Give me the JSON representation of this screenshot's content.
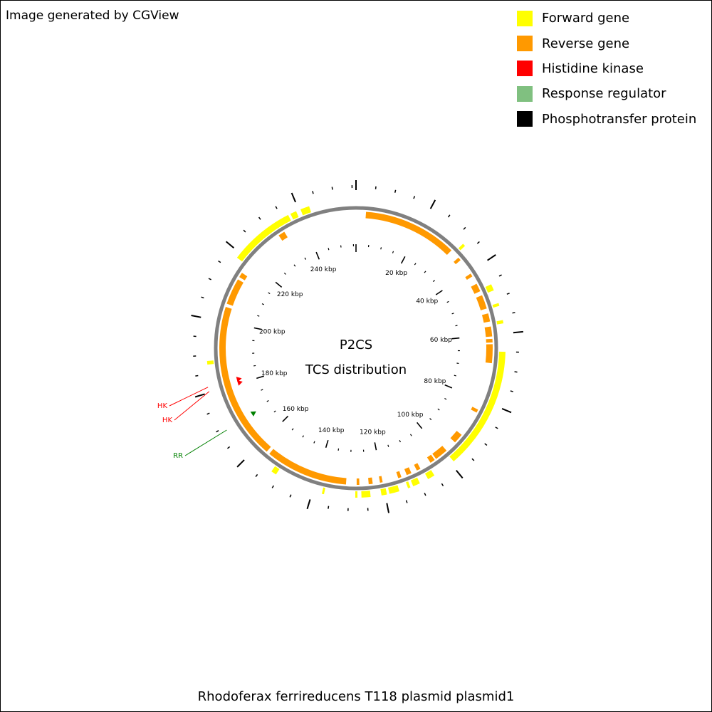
{
  "header": {
    "credit": "Image generated by CGView"
  },
  "legend": {
    "items": [
      {
        "label": "Forward gene",
        "color": "#ffff00"
      },
      {
        "label": "Reverse gene",
        "color": "#ff9900"
      },
      {
        "label": "Histidine kinase",
        "color": "#ff0000"
      },
      {
        "label": "Response regulator",
        "color": "#80c080"
      },
      {
        "label": "Phosphotransfer protein",
        "color": "#000000"
      }
    ]
  },
  "map": {
    "title_line1": "P2CS",
    "title_line2": "TCS distribution",
    "total_kbp": 256,
    "backbone_color": "#808080",
    "tick_labels": [
      "20 kbp",
      "40 kbp",
      "60 kbp",
      "80 kbp",
      "100 kbp",
      "120 kbp",
      "140 kbp",
      "160 kbp",
      "180 kbp",
      "200 kbp",
      "220 kbp",
      "240 kbp"
    ],
    "tick_label_kbp": [
      20,
      40,
      60,
      80,
      100,
      120,
      140,
      160,
      180,
      200,
      220,
      240
    ],
    "callouts": [
      {
        "label": "HK",
        "color": "#ff0000",
        "kbp": 181.5
      },
      {
        "label": "HK",
        "color": "#ff0000",
        "kbp": 180.3
      },
      {
        "label": "RR",
        "color": "#008000",
        "kbp": 169.0
      }
    ],
    "tcs_markers": [
      {
        "kind": "histidine-kinase",
        "color": "#ff0000",
        "kbp": 181.5
      },
      {
        "kind": "histidine-kinase",
        "color": "#ff0000",
        "kbp": 180.3
      },
      {
        "kind": "response-regulator",
        "color": "#008000",
        "kbp": 169.0
      }
    ],
    "forward_genes_kbp": [
      [
        237.5,
        239.2
      ],
      [
        240.5,
        243.0
      ],
      [
        218.5,
        236.8
      ],
      [
        32.5,
        33.3
      ],
      [
        46.0,
        47.8
      ],
      [
        51.5,
        52.3
      ],
      [
        56.3,
        57.2
      ],
      [
        65.0,
        99.0
      ],
      [
        105.5,
        107.5
      ],
      [
        110.0,
        112.0
      ],
      [
        112.8,
        113.5
      ],
      [
        116.0,
        118.8
      ],
      [
        119.5,
        121.0
      ],
      [
        124.0,
        126.5
      ],
      [
        127.6,
        128.2
      ],
      [
        136.8,
        137.4
      ],
      [
        151.0,
        152.5
      ],
      [
        187.5,
        188.5
      ]
    ],
    "reverse_genes_kbp": [
      [
        3.0,
        31.5
      ],
      [
        34.5,
        35.5
      ],
      [
        40.5,
        41.5
      ],
      [
        44.0,
        46.5
      ],
      [
        47.8,
        52.0
      ],
      [
        53.5,
        56.0
      ],
      [
        57.5,
        60.5
      ],
      [
        61.2,
        62.3
      ],
      [
        62.8,
        68.5
      ],
      [
        83.0,
        84.0
      ],
      [
        92.0,
        95.0
      ],
      [
        98.5,
        102.5
      ],
      [
        103.0,
        104.5
      ],
      [
        108.0,
        109.2
      ],
      [
        111.0,
        112.5
      ],
      [
        114.2,
        115.2
      ],
      [
        120.0,
        120.8
      ],
      [
        123.0,
        124.2
      ],
      [
        127.0,
        127.8
      ],
      [
        131.0,
        156.0
      ],
      [
        157.0,
        204.5
      ],
      [
        205.5,
        213.5
      ],
      [
        214.3,
        215.8
      ],
      [
        231.5,
        233.5
      ]
    ]
  }
}
